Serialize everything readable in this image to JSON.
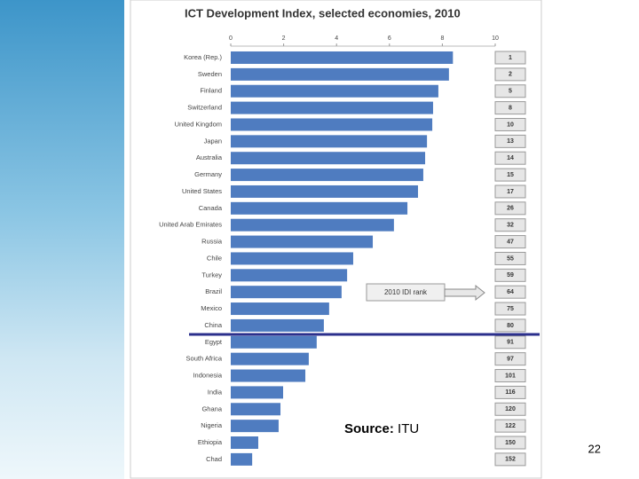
{
  "chart_data": {
    "type": "bar",
    "orientation": "horizontal",
    "title": "ICT Development Index, selected economies, 2010",
    "categories": [
      "Korea (Rep.)",
      "Sweden",
      "Finland",
      "Switzerland",
      "United Kingdom",
      "Japan",
      "Australia",
      "Germany",
      "United States",
      "Canada",
      "United Arab Emirates",
      "Russia",
      "Chile",
      "Turkey",
      "Brazil",
      "Mexico",
      "China",
      "Egypt",
      "South Africa",
      "Indonesia",
      "India",
      "Ghana",
      "Nigeria",
      "Ethiopia",
      "Chad"
    ],
    "values": [
      8.4,
      8.25,
      7.85,
      7.65,
      7.62,
      7.42,
      7.35,
      7.28,
      7.08,
      6.68,
      6.17,
      5.37,
      4.63,
      4.4,
      4.19,
      3.72,
      3.52,
      3.25,
      2.95,
      2.82,
      1.98,
      1.88,
      1.81,
      1.04,
      0.81
    ],
    "color": "#4f7cc0",
    "ranks": [
      1,
      2,
      5,
      8,
      10,
      13,
      14,
      15,
      17,
      26,
      32,
      47,
      55,
      59,
      64,
      75,
      80,
      91,
      97,
      101,
      116,
      120,
      122,
      150,
      152
    ],
    "rank_annotation": "2010 IDI rank",
    "xlim": [
      0,
      10
    ],
    "xticks": [
      0,
      2,
      4,
      6,
      8,
      10
    ],
    "grid": false
  },
  "source_label": "Source:",
  "source": "ITU",
  "page_number": "22"
}
